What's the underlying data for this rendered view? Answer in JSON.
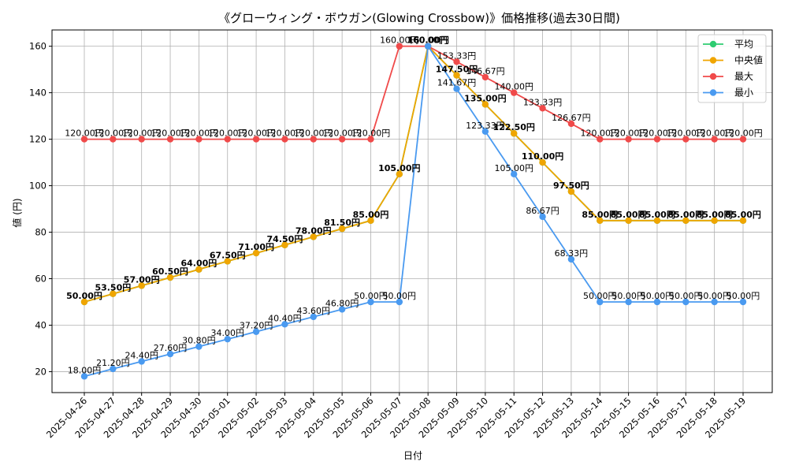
{
  "chart_data": {
    "type": "line",
    "title": "《グローウィング・ボウガン(Glowing Crossbow)》価格推移(過去30日間)",
    "xlabel": "日付",
    "ylabel": "値 (円)",
    "ylim": [
      11,
      167
    ],
    "yticks": [
      20,
      40,
      60,
      80,
      100,
      120,
      140,
      160
    ],
    "grid": true,
    "legend_position": "top-right",
    "categories": [
      "2025-04-26",
      "2025-04-27",
      "2025-04-28",
      "2025-04-29",
      "2025-04-30",
      "2025-05-01",
      "2025-05-02",
      "2025-05-03",
      "2025-05-04",
      "2025-05-05",
      "2025-05-06",
      "2025-05-07",
      "2025-05-08",
      "2025-05-09",
      "2025-05-10",
      "2025-05-11",
      "2025-05-12",
      "2025-05-13",
      "2025-05-14",
      "2025-05-15",
      "2025-05-16",
      "2025-05-17",
      "2025-05-18",
      "2025-05-19"
    ],
    "series": [
      {
        "name": "平均",
        "color": "#2ecc71",
        "label_style": "none",
        "values": [
          50,
          53.5,
          57,
          60.5,
          64,
          67.5,
          71,
          74.5,
          78,
          81.5,
          85,
          105,
          160,
          147.5,
          135,
          122.5,
          110,
          97.5,
          85,
          85,
          85,
          85,
          85,
          85
        ],
        "labels": []
      },
      {
        "name": "中央値",
        "color": "#f0a500",
        "label_style": "bold",
        "values": [
          50,
          53.5,
          57,
          60.5,
          64,
          67.5,
          71,
          74.5,
          78,
          81.5,
          85,
          105,
          160,
          147.5,
          135,
          122.5,
          110,
          97.5,
          85,
          85,
          85,
          85,
          85,
          85
        ],
        "labels": [
          "50.00円",
          "53.50円",
          "57.00円",
          "60.50円",
          "64.00円",
          "67.50円",
          "71.00円",
          "74.50円",
          "78.00円",
          "81.50円",
          "85.00円",
          "105.00円",
          "160.00円",
          "147.50円",
          "135.00円",
          "122.50円",
          "110.00円",
          "97.50円",
          "85.00円",
          "85.00円",
          "85.00円",
          "85.00円",
          "85.00円",
          "85.00円"
        ]
      },
      {
        "name": "最大",
        "color": "#f04a4a",
        "label_style": "normal",
        "values": [
          120,
          120,
          120,
          120,
          120,
          120,
          120,
          120,
          120,
          120,
          120,
          160,
          160,
          153.33,
          146.67,
          140,
          133.33,
          126.67,
          120,
          120,
          120,
          120,
          120,
          120
        ],
        "labels": [
          "120.00円",
          "120.00円",
          "120.00円",
          "120.00円",
          "120.00円",
          "120.00円",
          "120.00円",
          "120.00円",
          "120.00円",
          "120.00円",
          "120.00円",
          "160.00円",
          "160.00円",
          "153.33円",
          "146.67円",
          "140.00円",
          "133.33円",
          "126.67円",
          "120.00円",
          "120.00円",
          "120.00円",
          "120.00円",
          "120.00円",
          "120.00円"
        ]
      },
      {
        "name": "最小",
        "color": "#4a9af0",
        "label_style": "normal",
        "values": [
          18,
          21.2,
          24.4,
          27.6,
          30.8,
          34,
          37.2,
          40.4,
          43.6,
          46.8,
          50,
          50,
          160,
          141.67,
          123.33,
          105,
          86.67,
          68.33,
          50,
          50,
          50,
          50,
          50,
          50
        ],
        "labels": [
          "18.00円",
          "21.20円",
          "24.40円",
          "27.60円",
          "30.80円",
          "34.00円",
          "37.20円",
          "40.40円",
          "43.60円",
          "46.80円",
          "50.00円",
          "50.00円",
          "160.00円",
          "141.67円",
          "123.33円",
          "105.00円",
          "86.67円",
          "68.33円",
          "50.00円",
          "50.00円",
          "50.00円",
          "50.00円",
          "50.00円",
          "50.00円"
        ]
      }
    ]
  }
}
